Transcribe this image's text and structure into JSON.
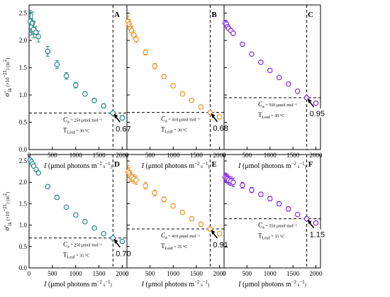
{
  "chart_data": [
    {
      "type": "scatter",
      "panel_label": "A",
      "color": "#2a8a8a",
      "x_label": "I (μmol photons m⁻² s⁻¹)",
      "y_label": "σ′ik (×10⁻²¹) (m²)",
      "xlim": [
        0,
        2100
      ],
      "ylim": [
        0.0,
        2.65
      ],
      "x_ticks": [
        "0",
        "500",
        "1000",
        "1500",
        "2000"
      ],
      "y_ticks": [
        "0.0",
        "0.5",
        "1.0",
        "1.5",
        "2.0",
        "2.5"
      ],
      "x": [
        25,
        50,
        75,
        100,
        150,
        200,
        400,
        600,
        800,
        1000,
        1200,
        1400,
        1600,
        1800,
        2000
      ],
      "y": [
        2.35,
        2.25,
        2.32,
        2.2,
        2.15,
        2.07,
        1.8,
        1.56,
        1.35,
        1.18,
        1.02,
        0.9,
        0.8,
        0.67,
        0.58
      ],
      "err": [
        0.2,
        0.15,
        0.2,
        0.15,
        0.1,
        0.1,
        0.09,
        0.07,
        0.06,
        0.05,
        0.04,
        0.04,
        0.04,
        0.03,
        0.04
      ],
      "annotation_x": 1800,
      "annotation_y": 0.67,
      "ca_text": "Ca = 250 μmol mol⁻¹",
      "tleaf_text": "TLeaf = 30 °C",
      "callout": "0.67"
    },
    {
      "type": "scatter",
      "panel_label": "B",
      "color": "#f0962a",
      "x_label": "I (μmol photons m⁻² s⁻¹)",
      "xlim": [
        0,
        2100
      ],
      "ylim": [
        0.0,
        2.65
      ],
      "x_ticks": [
        "0",
        "500",
        "1000",
        "1500",
        "2000"
      ],
      "x": [
        25,
        50,
        75,
        100,
        150,
        200,
        400,
        600,
        800,
        1000,
        1200,
        1400,
        1600,
        1800,
        2000
      ],
      "y": [
        2.35,
        2.3,
        2.22,
        2.18,
        2.1,
        2.02,
        1.78,
        1.53,
        1.34,
        1.17,
        1.02,
        0.9,
        0.78,
        0.68,
        0.6
      ],
      "err": [
        0.1,
        0.08,
        0.08,
        0.08,
        0.07,
        0.06,
        0.05,
        0.05,
        0.04,
        0.04,
        0.04,
        0.03,
        0.03,
        0.03,
        0.03
      ],
      "annotation_x": 1800,
      "annotation_y": 0.68,
      "ca_text": "Ca = 410 μmol mol⁻¹",
      "tleaf_text": "TLeaf = 30 °C",
      "callout": "0.68"
    },
    {
      "type": "scatter",
      "panel_label": "C",
      "color": "#8a2be2",
      "x_label": "I (μmol photons m⁻² s⁻¹)",
      "xlim": [
        0,
        2100
      ],
      "ylim": [
        0.0,
        2.65
      ],
      "x_ticks": [
        "0",
        "500",
        "1000",
        "1500",
        "2000"
      ],
      "x": [
        25,
        50,
        75,
        100,
        150,
        200,
        400,
        600,
        800,
        1000,
        1200,
        1400,
        1600,
        1800,
        2000
      ],
      "y": [
        2.32,
        2.3,
        2.25,
        2.22,
        2.18,
        2.13,
        1.93,
        1.75,
        1.6,
        1.45,
        1.32,
        1.2,
        1.07,
        0.95,
        0.85
      ],
      "err": [
        0.05,
        0.05,
        0.04,
        0.04,
        0.04,
        0.04,
        0.03,
        0.03,
        0.03,
        0.03,
        0.03,
        0.03,
        0.03,
        0.03,
        0.03
      ],
      "annotation_x": 1800,
      "annotation_y": 0.95,
      "ca_text": "Ca = 550 μmol mol⁻¹",
      "tleaf_text": "TLeaf = 30 °C",
      "callout": "0.95"
    },
    {
      "type": "scatter",
      "panel_label": "D",
      "color": "#2a8a8a",
      "x_label": "I (μmol photons m⁻² s⁻¹)",
      "y_label": "σ′ik (×10⁻²¹) (m²)",
      "xlim": [
        0,
        2100
      ],
      "ylim": [
        0.0,
        2.65
      ],
      "x_ticks": [
        "0",
        "500",
        "1000",
        "1500",
        "2000"
      ],
      "y_ticks": [
        "0.0",
        "0.5",
        "1.0",
        "1.5",
        "2.0",
        "2.5"
      ],
      "x": [
        25,
        50,
        75,
        100,
        150,
        200,
        400,
        600,
        800,
        1000,
        1200,
        1400,
        1600,
        1800,
        2000
      ],
      "y": [
        2.52,
        2.48,
        2.43,
        2.38,
        2.3,
        2.22,
        1.9,
        1.65,
        1.42,
        1.24,
        1.08,
        0.93,
        0.8,
        0.7,
        0.62
      ],
      "err": [
        0.05,
        0.05,
        0.04,
        0.04,
        0.04,
        0.04,
        0.04,
        0.04,
        0.03,
        0.03,
        0.03,
        0.03,
        0.03,
        0.03,
        0.03
      ],
      "annotation_x": 1800,
      "annotation_y": 0.7,
      "ca_text": "Ca = 250 μmol mol⁻¹",
      "tleaf_text": "TLeaf = 35 °C",
      "callout": "0.70"
    },
    {
      "type": "scatter",
      "panel_label": "E",
      "color": "#f0962a",
      "x_label": "I (μmol photons m⁻² s⁻¹)",
      "xlim": [
        0,
        2100
      ],
      "ylim": [
        0.0,
        2.65
      ],
      "x_ticks": [
        "0",
        "500",
        "1000",
        "1500",
        "2000"
      ],
      "x": [
        25,
        50,
        75,
        100,
        150,
        200,
        400,
        600,
        800,
        1000,
        1200,
        1400,
        1600,
        1800,
        2000
      ],
      "y": [
        2.25,
        2.22,
        2.15,
        2.12,
        2.08,
        2.05,
        1.92,
        1.75,
        1.6,
        1.45,
        1.3,
        1.15,
        1.02,
        0.91,
        0.8
      ],
      "err": [
        0.15,
        0.12,
        0.12,
        0.1,
        0.1,
        0.1,
        0.08,
        0.07,
        0.06,
        0.05,
        0.05,
        0.05,
        0.05,
        0.05,
        0.05
      ],
      "annotation_x": 1800,
      "annotation_y": 0.91,
      "ca_text": "Ca = 410 μmol mol⁻¹",
      "tleaf_text": "TLeaf = 35 °C",
      "callout": "0.91"
    },
    {
      "type": "scatter",
      "panel_label": "F",
      "color": "#8a2be2",
      "x_label": "I (μmol photons m⁻² s⁻¹)",
      "xlim": [
        0,
        2100
      ],
      "ylim": [
        0.0,
        2.65
      ],
      "x_ticks": [
        "0",
        "500",
        "1000",
        "1500",
        "2000"
      ],
      "x": [
        25,
        50,
        75,
        100,
        150,
        200,
        400,
        600,
        800,
        1000,
        1200,
        1400,
        1600,
        1800,
        2000
      ],
      "y": [
        2.12,
        2.1,
        2.08,
        2.05,
        2.03,
        2.0,
        1.93,
        1.82,
        1.72,
        1.62,
        1.5,
        1.38,
        1.25,
        1.15,
        1.05
      ],
      "err": [
        0.1,
        0.1,
        0.1,
        0.1,
        0.1,
        0.1,
        0.07,
        0.06,
        0.05,
        0.05,
        0.05,
        0.05,
        0.04,
        0.04,
        0.04
      ],
      "annotation_x": 1800,
      "annotation_y": 1.15,
      "ca_text": "Ca = 550 μmol mol⁻¹",
      "tleaf_text": "TLeaf = 35 °C",
      "callout": "1.15"
    }
  ]
}
